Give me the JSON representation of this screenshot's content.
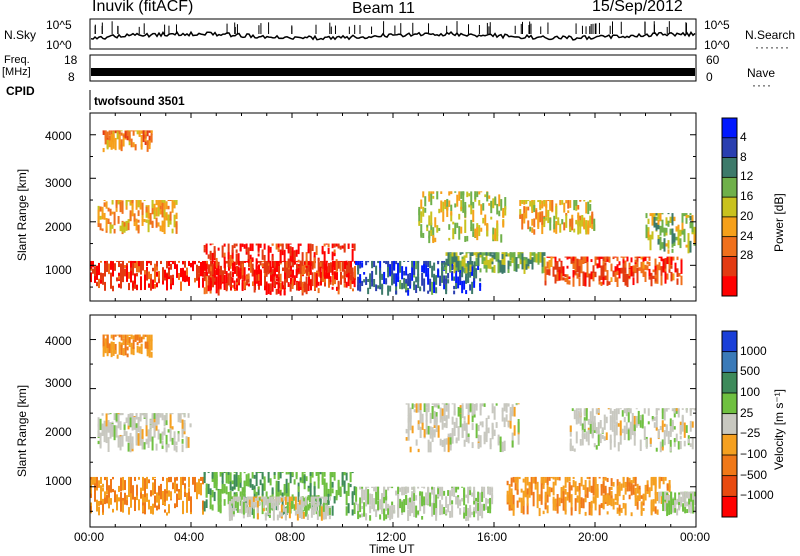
{
  "header": {
    "station": "Inuvik (fitACF)",
    "beam": "Beam 11",
    "date": "15/Sep/2012"
  },
  "params": {
    "nsky_label": "N.Sky",
    "nsky_ticks": [
      "10^5",
      "10^0"
    ],
    "nsearch_label": "N.Search",
    "nsearch_ticks": [
      "10^5",
      "10^0"
    ],
    "freq_label": "Freq.",
    "freq_unit": "[MHz]",
    "freq_ticks": [
      "18",
      "8"
    ],
    "nave_label": "Nave",
    "nave_ticks": [
      "60",
      "0"
    ],
    "cpid_label": "CPID",
    "cpid_value": "twofsound 3501"
  },
  "xaxis": {
    "label": "Time UT",
    "ticks": [
      "00:00",
      "04:00",
      "08:00",
      "12:00",
      "16:00",
      "20:00",
      "00:00"
    ],
    "range_hours": [
      0,
      24
    ]
  },
  "chart_data": [
    {
      "type": "heatmap",
      "quantity": "Power",
      "ylabel": "Slant Range [km]",
      "yticks": [
        "1000",
        "2000",
        "3000",
        "4000"
      ],
      "ylim": [
        180,
        4500
      ],
      "colorbar": {
        "label": "Power [dB]",
        "ticks": [
          "4",
          "8",
          "12",
          "16",
          "20",
          "24",
          "28"
        ],
        "colors": [
          "#0018ff",
          "#2a3fb0",
          "#3d7a6a",
          "#6fb04a",
          "#c9c21e",
          "#f6a01a",
          "#f0701c",
          "#e33a12",
          "#ff0000"
        ]
      },
      "regions": [
        {
          "t": [
            0,
            10.5
          ],
          "r": [
            400,
            1100
          ],
          "value": 28
        },
        {
          "t": [
            0.3,
            3.5
          ],
          "r": [
            1700,
            2500
          ],
          "value": 20
        },
        {
          "t": [
            0.5,
            2.5
          ],
          "r": [
            3600,
            4100
          ],
          "value": 22
        },
        {
          "t": [
            4.5,
            10.5
          ],
          "r": [
            300,
            1500
          ],
          "value": 28
        },
        {
          "t": [
            10.5,
            15.5
          ],
          "r": [
            300,
            1100
          ],
          "value": 6
        },
        {
          "t": [
            13,
            16.5
          ],
          "r": [
            1500,
            2700
          ],
          "value": 16
        },
        {
          "t": [
            14,
            18
          ],
          "r": [
            800,
            1300
          ],
          "value": 12
        },
        {
          "t": [
            18,
            23.5
          ],
          "r": [
            500,
            1200
          ],
          "value": 26
        },
        {
          "t": [
            17,
            20
          ],
          "r": [
            1700,
            2500
          ],
          "value": 18
        },
        {
          "t": [
            22,
            24
          ],
          "r": [
            1200,
            2200
          ],
          "value": 14
        }
      ]
    },
    {
      "type": "heatmap",
      "quantity": "Velocity",
      "ylabel": "Slant Range [km]",
      "yticks": [
        "1000",
        "2000",
        "3000",
        "4000"
      ],
      "ylim": [
        180,
        4500
      ],
      "colorbar": {
        "label": "Velocity [m s⁻¹]",
        "ticks": [
          "1000",
          "500",
          "100",
          "25",
          "−25",
          "−100",
          "−500",
          "−1000"
        ],
        "colors": [
          "#1a3fd8",
          "#3a7ab8",
          "#3d8a5a",
          "#6fc040",
          "#c8c8c0",
          "#f5a020",
          "#f07818",
          "#e84a10",
          "#ff0000"
        ]
      },
      "regions": [
        {
          "t": [
            0,
            4.5
          ],
          "r": [
            400,
            1200
          ],
          "value": -300
        },
        {
          "t": [
            0.5,
            2.5
          ],
          "r": [
            3600,
            4100
          ],
          "value": -300
        },
        {
          "t": [
            0.3,
            4
          ],
          "r": [
            1700,
            2500
          ],
          "value": 0
        },
        {
          "t": [
            4.5,
            10.5
          ],
          "r": [
            400,
            1300
          ],
          "value": 300
        },
        {
          "t": [
            5.5,
            9.5
          ],
          "r": [
            300,
            800
          ],
          "value": 0
        },
        {
          "t": [
            10.5,
            16
          ],
          "r": [
            300,
            1000
          ],
          "value": 80
        },
        {
          "t": [
            12.5,
            17
          ],
          "r": [
            1700,
            2700
          ],
          "value": 0
        },
        {
          "t": [
            16.5,
            23
          ],
          "r": [
            400,
            1200
          ],
          "value": -300
        },
        {
          "t": [
            19,
            24
          ],
          "r": [
            1700,
            2600
          ],
          "value": 0
        },
        {
          "t": [
            22.5,
            24
          ],
          "r": [
            400,
            900
          ],
          "value": 100
        }
      ]
    }
  ]
}
